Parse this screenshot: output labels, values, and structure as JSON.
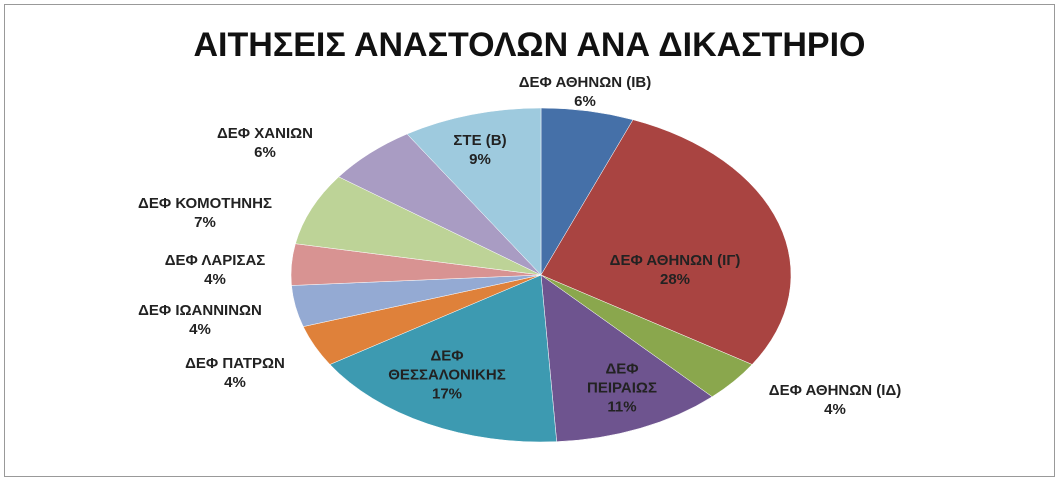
{
  "chart_data": {
    "type": "pie",
    "title": "ΑΙΤΗΣΕΙΣ ΑΝΑΣΤΟΛΩΝ ΑΝΑ ΔΙΚΑΣΤΗΡΙΟ",
    "categories": [
      "ΔΕΦ ΑΘΗΝΩΝ (ΙΒ)",
      "ΔΕΦ ΑΘΗΝΩΝ (ΙΓ)",
      "ΔΕΦ ΑΘΗΝΩΝ (ΙΔ)",
      "ΔΕΦ ΠΕΙΡΑΙΩΣ",
      "ΔΕΦ ΘΕΣΣΑΛΟΝΙΚΗΣ",
      "ΔΕΦ ΠΑΤΡΩΝ",
      "ΔΕΦ ΙΩΑΝΝΙΝΩΝ",
      "ΔΕΦ ΛΑΡΙΣΑΣ",
      "ΔΕΦ ΚΟΜΟΤΗΝΗΣ",
      "ΔΕΦ ΧΑΝΙΩΝ",
      "ΣΤΕ (Β)"
    ],
    "values": [
      6,
      28,
      4,
      11,
      17,
      4,
      4,
      4,
      7,
      6,
      9
    ],
    "value_labels": [
      "6%",
      "28%",
      "4%",
      "11%",
      "17%",
      "4%",
      "4%",
      "4%",
      "7%",
      "6%",
      "9%"
    ],
    "colors": [
      "#4570a8",
      "#a94441",
      "#8aa74d",
      "#6e548f",
      "#3d9ab1",
      "#df813a",
      "#94aad3",
      "#d89392",
      "#bdd397",
      "#a99cc3",
      "#9ecade"
    ]
  }
}
